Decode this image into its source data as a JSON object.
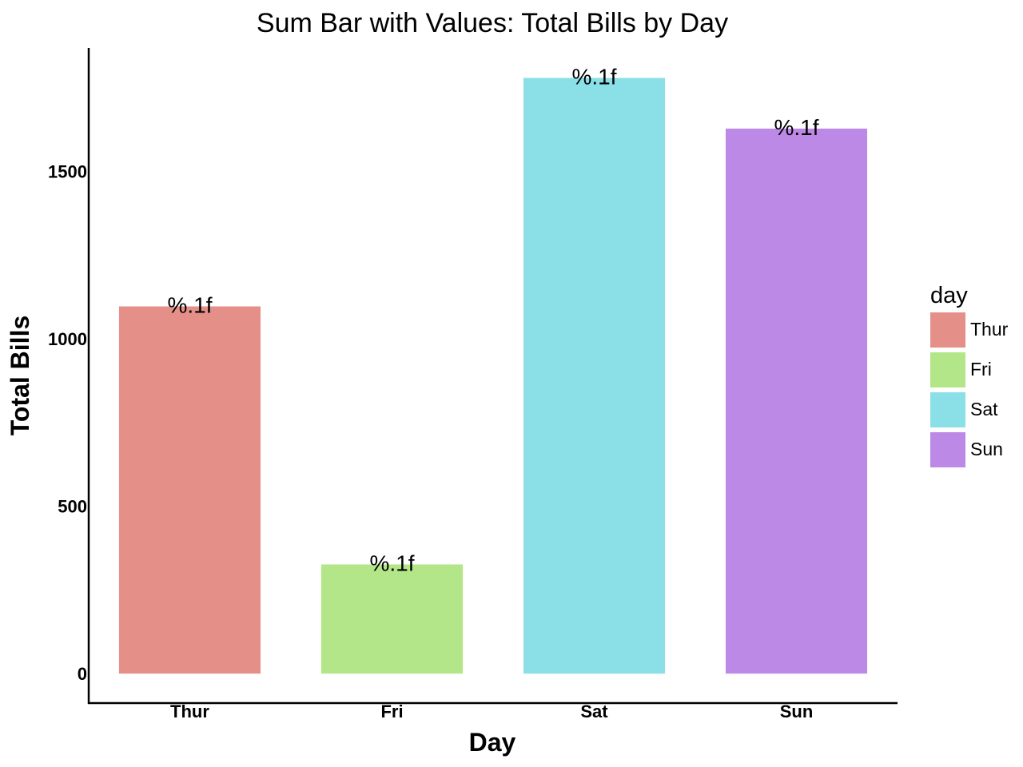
{
  "chart_data": {
    "type": "bar",
    "title": "Sum Bar with Values: Total Bills by Day",
    "xlabel": "Day",
    "ylabel": "Total Bills",
    "categories": [
      "Thur",
      "Fri",
      "Sat",
      "Sun"
    ],
    "values": [
      1096.3,
      325.9,
      1778.4,
      1627.2
    ],
    "bar_labels": [
      "%.1f",
      "%.1f",
      "%.1f",
      "%.1f"
    ],
    "colors": [
      "#e58f89",
      "#b2e689",
      "#8ae0e6",
      "#bd89e6"
    ],
    "ylim": [
      -88,
      1868
    ],
    "yticks": [
      0,
      500,
      1000,
      1500
    ],
    "grid": false,
    "legend": {
      "title": "day",
      "placement": "right",
      "entries": [
        "Thur",
        "Fri",
        "Sat",
        "Sun"
      ]
    }
  }
}
